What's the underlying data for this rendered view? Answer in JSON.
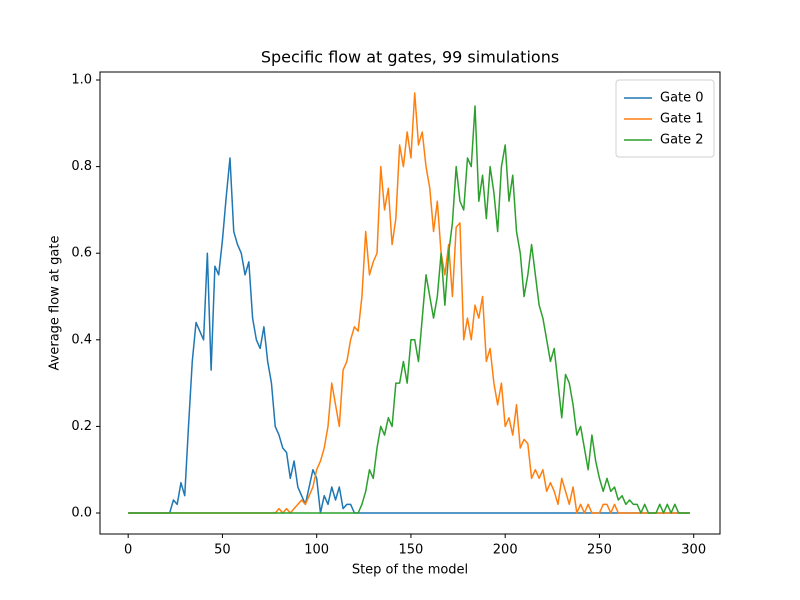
{
  "chart_data": {
    "type": "line",
    "title": "Specific flow at gates, 99 simulations",
    "xlabel": "Step of the model",
    "ylabel": "Average flow at gate",
    "x": [
      0,
      2,
      4,
      6,
      8,
      10,
      12,
      14,
      16,
      18,
      20,
      22,
      24,
      26,
      28,
      30,
      32,
      34,
      36,
      38,
      40,
      42,
      44,
      46,
      48,
      50,
      52,
      54,
      56,
      58,
      60,
      62,
      64,
      66,
      68,
      70,
      72,
      74,
      76,
      78,
      80,
      82,
      84,
      86,
      88,
      90,
      92,
      94,
      96,
      98,
      100,
      102,
      104,
      106,
      108,
      110,
      112,
      114,
      116,
      118,
      120,
      122,
      124,
      126,
      128,
      130,
      132,
      134,
      136,
      138,
      140,
      142,
      144,
      146,
      148,
      150,
      152,
      154,
      156,
      158,
      160,
      162,
      164,
      166,
      168,
      170,
      172,
      174,
      176,
      178,
      180,
      182,
      184,
      186,
      188,
      190,
      192,
      194,
      196,
      198,
      200,
      202,
      204,
      206,
      208,
      210,
      212,
      214,
      216,
      218,
      220,
      222,
      224,
      226,
      228,
      230,
      232,
      234,
      236,
      238,
      240,
      242,
      244,
      246,
      248,
      250,
      252,
      254,
      256,
      258,
      260,
      262,
      264,
      266,
      268,
      270,
      272,
      274,
      276,
      278,
      280,
      282,
      284,
      286,
      288,
      290,
      292,
      294,
      296,
      298
    ],
    "series": [
      {
        "name": "Gate 0",
        "color": "#1f77b4",
        "values": [
          0,
          0,
          0,
          0,
          0,
          0,
          0,
          0,
          0,
          0,
          0,
          0,
          0.03,
          0.02,
          0.07,
          0.04,
          0.2,
          0.35,
          0.44,
          0.42,
          0.4,
          0.6,
          0.33,
          0.57,
          0.55,
          0.63,
          0.73,
          0.82,
          0.65,
          0.62,
          0.6,
          0.55,
          0.58,
          0.45,
          0.4,
          0.38,
          0.43,
          0.35,
          0.3,
          0.2,
          0.18,
          0.15,
          0.14,
          0.08,
          0.12,
          0.06,
          0.04,
          0.02,
          0.06,
          0.1,
          0.08,
          0,
          0.04,
          0.02,
          0.06,
          0.03,
          0.06,
          0.01,
          0.02,
          0.02,
          0,
          0,
          0,
          0,
          0,
          0,
          0,
          0,
          0,
          0,
          0,
          0,
          0,
          0,
          0,
          0,
          0,
          0,
          0,
          0,
          0,
          0,
          0,
          0,
          0,
          0,
          0,
          0,
          0,
          0,
          0,
          0,
          0,
          0,
          0,
          0,
          0,
          0,
          0,
          0,
          0,
          0,
          0,
          0,
          0,
          0,
          0,
          0,
          0,
          0,
          0,
          0,
          0,
          0,
          0,
          0,
          0,
          0,
          0,
          0,
          0,
          0,
          0,
          0,
          0,
          0,
          0,
          0,
          0,
          0,
          0,
          0,
          0,
          0,
          0,
          0,
          0,
          0,
          0,
          0,
          0,
          0,
          0,
          0,
          0,
          0,
          0,
          0,
          0,
          0
        ]
      },
      {
        "name": "Gate 1",
        "color": "#ff7f0e",
        "values": [
          0,
          0,
          0,
          0,
          0,
          0,
          0,
          0,
          0,
          0,
          0,
          0,
          0,
          0,
          0,
          0,
          0,
          0,
          0,
          0,
          0,
          0,
          0,
          0,
          0,
          0,
          0,
          0,
          0,
          0,
          0,
          0,
          0,
          0,
          0,
          0,
          0,
          0,
          0,
          0,
          0.01,
          0,
          0.01,
          0,
          0.01,
          0.02,
          0.03,
          0.02,
          0.04,
          0.06,
          0.1,
          0.12,
          0.15,
          0.2,
          0.3,
          0.25,
          0.2,
          0.33,
          0.35,
          0.4,
          0.43,
          0.42,
          0.5,
          0.65,
          0.55,
          0.58,
          0.6,
          0.8,
          0.7,
          0.75,
          0.62,
          0.68,
          0.85,
          0.8,
          0.88,
          0.82,
          0.97,
          0.85,
          0.88,
          0.8,
          0.75,
          0.65,
          0.72,
          0.6,
          0.55,
          0.62,
          0.5,
          0.66,
          0.67,
          0.4,
          0.45,
          0.4,
          0.48,
          0.45,
          0.5,
          0.35,
          0.38,
          0.3,
          0.25,
          0.3,
          0.2,
          0.22,
          0.18,
          0.25,
          0.15,
          0.17,
          0.16,
          0.08,
          0.1,
          0.08,
          0.1,
          0.05,
          0.07,
          0.05,
          0.02,
          0.08,
          0.05,
          0.02,
          0.06,
          0,
          0.02,
          0,
          0.02,
          0,
          0,
          0,
          0.02,
          0.02,
          0,
          0.02,
          0,
          0,
          0,
          0,
          0,
          0,
          0,
          0,
          0,
          0,
          0,
          0,
          0,
          0,
          0,
          0,
          0,
          0,
          0,
          0
        ]
      },
      {
        "name": "Gate 2",
        "color": "#2ca02c",
        "values": [
          0,
          0,
          0,
          0,
          0,
          0,
          0,
          0,
          0,
          0,
          0,
          0,
          0,
          0,
          0,
          0,
          0,
          0,
          0,
          0,
          0,
          0,
          0,
          0,
          0,
          0,
          0,
          0,
          0,
          0,
          0,
          0,
          0,
          0,
          0,
          0,
          0,
          0,
          0,
          0,
          0,
          0,
          0,
          0,
          0,
          0,
          0,
          0,
          0,
          0,
          0,
          0,
          0,
          0,
          0,
          0,
          0,
          0,
          0,
          0,
          0,
          0,
          0.02,
          0.05,
          0.1,
          0.08,
          0.15,
          0.2,
          0.18,
          0.22,
          0.2,
          0.3,
          0.3,
          0.35,
          0.3,
          0.4,
          0.4,
          0.35,
          0.45,
          0.55,
          0.5,
          0.45,
          0.5,
          0.6,
          0.48,
          0.6,
          0.67,
          0.8,
          0.72,
          0.7,
          0.82,
          0.8,
          0.94,
          0.72,
          0.78,
          0.68,
          0.8,
          0.74,
          0.65,
          0.8,
          0.85,
          0.72,
          0.78,
          0.65,
          0.6,
          0.5,
          0.55,
          0.62,
          0.55,
          0.48,
          0.45,
          0.4,
          0.35,
          0.38,
          0.3,
          0.22,
          0.32,
          0.3,
          0.25,
          0.18,
          0.2,
          0.15,
          0.1,
          0.18,
          0.12,
          0.08,
          0.05,
          0.08,
          0.05,
          0.06,
          0.03,
          0.04,
          0.02,
          0.03,
          0.02,
          0.02,
          0,
          0.02,
          0,
          0,
          0,
          0.02,
          0,
          0.02,
          0,
          0.02,
          0,
          0,
          0,
          0
        ]
      }
    ],
    "xlim": [
      -14.95,
      313.95
    ],
    "ylim": [
      -0.0485,
      1.0185
    ],
    "xticks": [
      0,
      50,
      100,
      150,
      200,
      250,
      300
    ],
    "yticks": [
      {
        "value": 0,
        "label": "0.0"
      },
      {
        "value": 0.2,
        "label": "0.2"
      },
      {
        "value": 0.4,
        "label": "0.4"
      },
      {
        "value": 0.6,
        "label": "0.6"
      },
      {
        "value": 0.8,
        "label": "0.8"
      },
      {
        "value": 1,
        "label": "1.0"
      }
    ],
    "legend": "upper right"
  }
}
